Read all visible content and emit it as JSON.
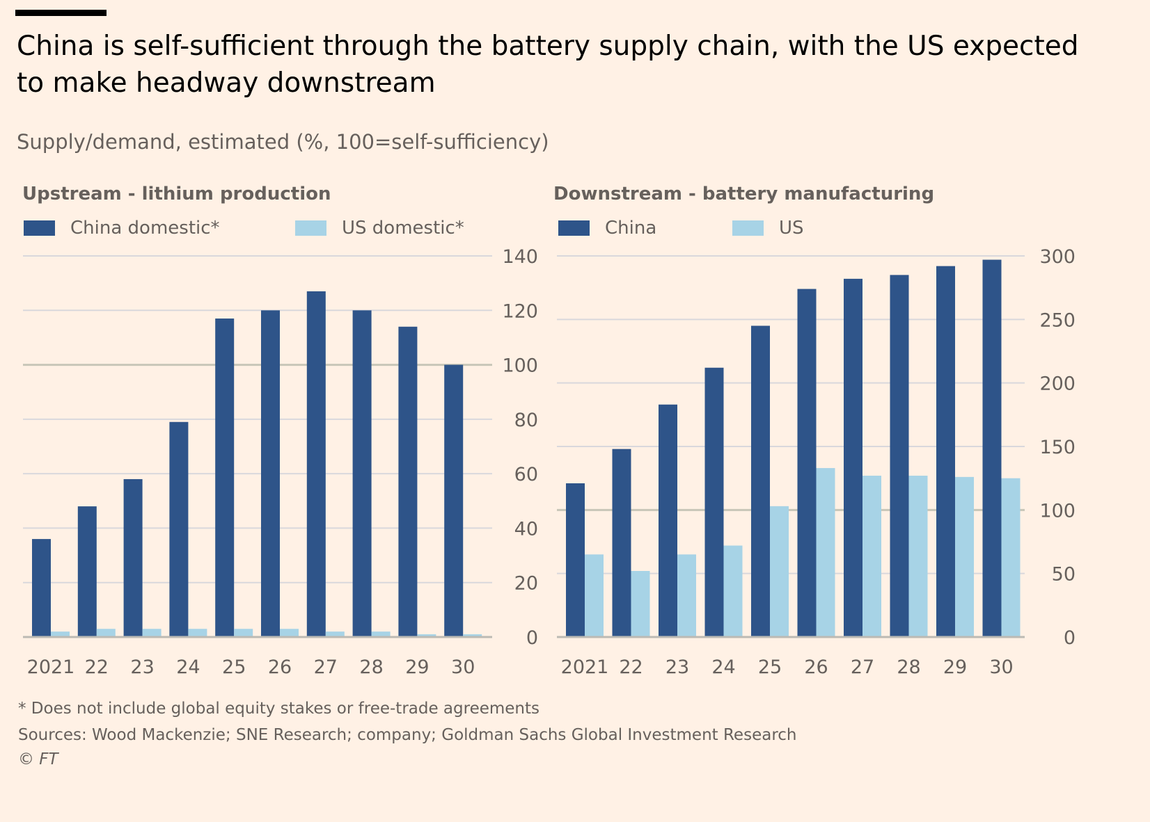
{
  "title": "China is self-sufficient through the battery supply chain, with the US expected to make headway downstream",
  "subtitle": "Supply/demand, estimated (%, 100=self-sufficiency)",
  "colors": {
    "background": "#fff1e5",
    "china": "#2e5489",
    "us": "#a7d3e6",
    "grid": "#d9d8dc",
    "reference_line": "#c8c6b8",
    "text": "#66605c"
  },
  "footnotes": {
    "note": "* Does not include global equity stakes or free-trade agreements",
    "sources": "Sources: Wood Mackenzie; SNE Research; company; Goldman Sachs Global Investment Research",
    "credit": "© FT"
  },
  "chart_data": [
    {
      "type": "bar",
      "title": "Upstream - lithium production",
      "categories": [
        "2021",
        "22",
        "23",
        "24",
        "25",
        "26",
        "27",
        "28",
        "29",
        "30"
      ],
      "series": [
        {
          "name": "China domestic*",
          "color": "#2e5489",
          "values": [
            36,
            48,
            58,
            79,
            117,
            120,
            127,
            120,
            114,
            100
          ]
        },
        {
          "name": "US domestic*",
          "color": "#a7d3e6",
          "values": [
            2,
            3,
            3,
            3,
            3,
            3,
            2,
            2,
            1,
            1
          ]
        }
      ],
      "ylim": [
        0,
        140
      ],
      "yticks": [
        "0",
        "20",
        "40",
        "60",
        "80",
        "100",
        "120",
        "140"
      ],
      "reference_line": 100,
      "y_axis_side": "right",
      "grid": true
    },
    {
      "type": "bar",
      "title": "Downstream - battery manufacturing",
      "categories": [
        "2021",
        "22",
        "23",
        "24",
        "25",
        "26",
        "27",
        "28",
        "29",
        "30"
      ],
      "series": [
        {
          "name": "China",
          "color": "#2e5489",
          "values": [
            121,
            148,
            183,
            212,
            245,
            274,
            282,
            285,
            292,
            297
          ]
        },
        {
          "name": "US",
          "color": "#a7d3e6",
          "values": [
            65,
            52,
            65,
            72,
            103,
            133,
            127,
            127,
            126,
            125
          ]
        }
      ],
      "ylim": [
        0,
        300
      ],
      "yticks": [
        "0",
        "50",
        "100",
        "150",
        "200",
        "250",
        "300"
      ],
      "reference_line": 100,
      "y_axis_side": "right",
      "grid": true
    }
  ]
}
